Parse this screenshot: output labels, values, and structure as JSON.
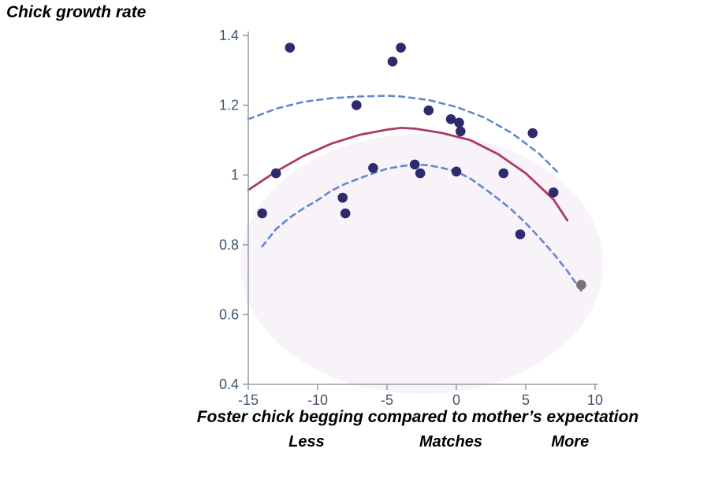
{
  "page": {
    "title": "Chick growth rate"
  },
  "axis": {
    "xlabel": "Foster chick begging compared to mother’s expectation",
    "x_sublabels": [
      {
        "label": "Less",
        "x": -10.8
      },
      {
        "label": "Matches",
        "x": -0.4
      },
      {
        "label": "More",
        "x": 8.2
      }
    ]
  },
  "chart_data": {
    "type": "scatter",
    "title": "Chick growth rate",
    "xlabel": "Foster chick begging compared to mother’s expectation",
    "ylabel": "Chick growth rate",
    "xlim": [
      -15,
      10
    ],
    "ylim": [
      0.4,
      1.4
    ],
    "xticks": [
      -15,
      -10,
      -5,
      0,
      5,
      10
    ],
    "yticks": [
      0.4,
      0.6,
      0.8,
      1,
      1.2,
      1.4
    ],
    "grid": false,
    "legend": "none",
    "points": [
      {
        "x": -14,
        "y": 0.89,
        "color": "#2e2a6e"
      },
      {
        "x": -13,
        "y": 1.005,
        "color": "#2e2a6e"
      },
      {
        "x": -12,
        "y": 1.365,
        "color": "#2e2a6e"
      },
      {
        "x": -8.2,
        "y": 0.935,
        "color": "#2e2a6e"
      },
      {
        "x": -8,
        "y": 0.89,
        "color": "#2e2a6e"
      },
      {
        "x": -7.2,
        "y": 1.2,
        "color": "#2e2a6e"
      },
      {
        "x": -6,
        "y": 1.02,
        "color": "#2e2a6e"
      },
      {
        "x": -4.6,
        "y": 1.325,
        "color": "#2e2a6e"
      },
      {
        "x": -4,
        "y": 1.365,
        "color": "#2e2a6e"
      },
      {
        "x": -3,
        "y": 1.03,
        "color": "#2e2a6e"
      },
      {
        "x": -2.6,
        "y": 1.005,
        "color": "#2e2a6e"
      },
      {
        "x": -2,
        "y": 1.185,
        "color": "#2e2a6e"
      },
      {
        "x": -0.4,
        "y": 1.16,
        "color": "#2e2a6e"
      },
      {
        "x": 0.2,
        "y": 1.15,
        "color": "#2e2a6e"
      },
      {
        "x": 0.3,
        "y": 1.125,
        "color": "#2e2a6e"
      },
      {
        "x": 0,
        "y": 1.01,
        "color": "#2e2a6e"
      },
      {
        "x": 3.4,
        "y": 1.005,
        "color": "#2e2a6e"
      },
      {
        "x": 4.6,
        "y": 0.83,
        "color": "#2e2a6e"
      },
      {
        "x": 5.5,
        "y": 1.12,
        "color": "#2e2a6e"
      },
      {
        "x": 7,
        "y": 0.95,
        "color": "#2e2a6e"
      },
      {
        "x": 9,
        "y": 0.685,
        "color": "#75717e"
      }
    ],
    "fit_curve": {
      "name": "quadratic-fit",
      "style": "solid",
      "color": "#b03865",
      "points": [
        [
          -15,
          0.957
        ],
        [
          -13,
          1.01
        ],
        [
          -11,
          1.055
        ],
        [
          -9,
          1.09
        ],
        [
          -7,
          1.115
        ],
        [
          -5,
          1.13
        ],
        [
          -4,
          1.135
        ],
        [
          -3,
          1.133
        ],
        [
          -1,
          1.12
        ],
        [
          1,
          1.1
        ],
        [
          3,
          1.06
        ],
        [
          5,
          1.005
        ],
        [
          7,
          0.93
        ],
        [
          8,
          0.87
        ]
      ]
    },
    "ci_upper": {
      "name": "upper-confidence-band",
      "style": "dashed",
      "color": "#6486d2",
      "points": [
        [
          -15,
          1.16
        ],
        [
          -13,
          1.19
        ],
        [
          -11,
          1.21
        ],
        [
          -9,
          1.22
        ],
        [
          -7,
          1.225
        ],
        [
          -5,
          1.227
        ],
        [
          -4,
          1.225
        ],
        [
          -2,
          1.215
        ],
        [
          0,
          1.195
        ],
        [
          2,
          1.165
        ],
        [
          4,
          1.12
        ],
        [
          6,
          1.06
        ],
        [
          7.5,
          1.0
        ]
      ]
    },
    "ci_lower": {
      "name": "lower-confidence-band",
      "style": "dashed",
      "color": "#6486d2",
      "points": [
        [
          -14,
          0.795
        ],
        [
          -13,
          0.845
        ],
        [
          -12,
          0.878
        ],
        [
          -11,
          0.905
        ],
        [
          -10,
          0.928
        ],
        [
          -9,
          0.955
        ],
        [
          -8,
          0.975
        ],
        [
          -7,
          0.99
        ],
        [
          -6,
          1.005
        ],
        [
          -5,
          1.018
        ],
        [
          -4,
          1.025
        ],
        [
          -3,
          1.03
        ],
        [
          -2,
          1.028
        ],
        [
          -1,
          1.02
        ],
        [
          0,
          1.01
        ],
        [
          1,
          0.99
        ],
        [
          2,
          0.962
        ],
        [
          3,
          0.932
        ],
        [
          4,
          0.9
        ],
        [
          5,
          0.862
        ],
        [
          6,
          0.82
        ],
        [
          7,
          0.775
        ],
        [
          8,
          0.725
        ],
        [
          9,
          0.668
        ]
      ]
    },
    "colors": {
      "axis": "#9aa0a6",
      "tick_text": "#3d566e",
      "point": "#2e2a6e",
      "point_outlier": "#75717e",
      "bg_tint": "#efe8f2"
    }
  }
}
